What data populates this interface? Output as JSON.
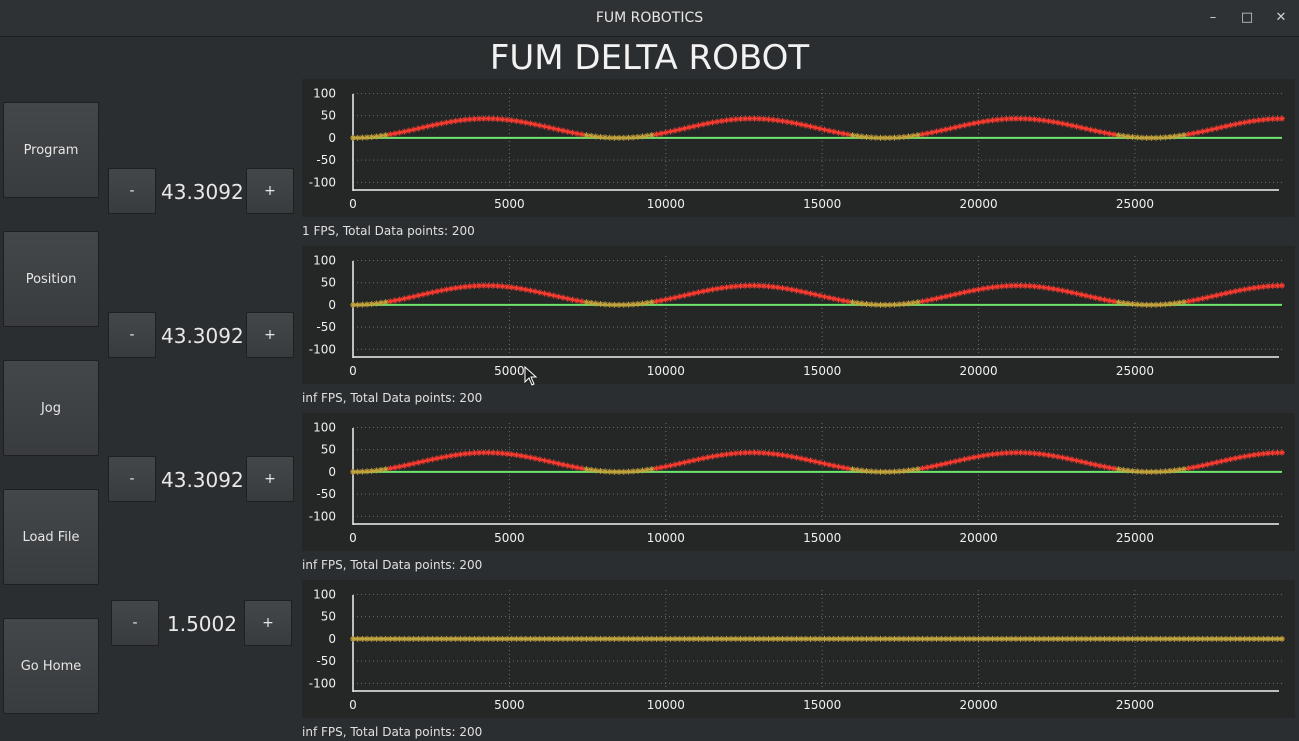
{
  "window": {
    "title": "FUM ROBOTICS",
    "controls": [
      "minimize",
      "maximize",
      "close"
    ]
  },
  "header": {
    "title": "FUM DELTA ROBOT"
  },
  "sidebar": {
    "buttons": [
      {
        "label": "Program"
      },
      {
        "label": "Position"
      },
      {
        "label": "Jog"
      },
      {
        "label": "Load File"
      },
      {
        "label": "Go Home"
      }
    ]
  },
  "steppers": [
    {
      "minus": "-",
      "plus": "+",
      "value": "43.3092"
    },
    {
      "minus": "-",
      "plus": "+",
      "value": "43.3092"
    },
    {
      "minus": "-",
      "plus": "+",
      "value": "43.3092"
    },
    {
      "minus": "-",
      "plus": "+",
      "value": "1.5002"
    }
  ],
  "colors": {
    "signal": "#ff3b30",
    "baseline": "#6ee66e",
    "background": "#2b2e30",
    "plot_bg": "#242726"
  },
  "plots": [
    {
      "status": "1 FPS, Total Data points: 200"
    },
    {
      "status": "inf FPS, Total Data points: 200"
    },
    {
      "status": "inf FPS, Total Data points: 200"
    },
    {
      "status": "inf FPS, Total Data points: 200"
    }
  ],
  "chart_data": [
    {
      "type": "line",
      "x_ticks": [
        "0",
        "5000",
        "10000",
        "15000",
        "20000",
        "25000"
      ],
      "y_ticks": [
        "100",
        "50",
        "0",
        "-50",
        "-100"
      ],
      "xlim": [
        0,
        29700
      ],
      "ylim": [
        -115,
        110
      ],
      "grid": true,
      "points": 200,
      "series": [
        {
          "amplitude": 43.3092,
          "period": 8500
        },
        {
          "constant": 0
        }
      ]
    },
    {
      "type": "line",
      "x_ticks": [
        "0",
        "5000",
        "10000",
        "15000",
        "20000",
        "25000"
      ],
      "y_ticks": [
        "100",
        "50",
        "0",
        "-50",
        "-100"
      ],
      "xlim": [
        0,
        29700
      ],
      "ylim": [
        -115,
        110
      ],
      "grid": true,
      "points": 200,
      "series": [
        {
          "amplitude": 43.3092,
          "period": 8500
        },
        {
          "constant": 0
        }
      ]
    },
    {
      "type": "line",
      "x_ticks": [
        "0",
        "5000",
        "10000",
        "15000",
        "20000",
        "25000"
      ],
      "y_ticks": [
        "100",
        "50",
        "0",
        "-50",
        "-100"
      ],
      "xlim": [
        0,
        29700
      ],
      "ylim": [
        -115,
        110
      ],
      "grid": true,
      "points": 200,
      "series": [
        {
          "amplitude": 43.3092,
          "period": 8500
        },
        {
          "constant": 0
        }
      ]
    },
    {
      "type": "line",
      "x_ticks": [
        "0",
        "5000",
        "10000",
        "15000",
        "20000",
        "25000"
      ],
      "y_ticks": [
        "100",
        "50",
        "0",
        "-50",
        "-100"
      ],
      "xlim": [
        0,
        29700
      ],
      "ylim": [
        -115,
        110
      ],
      "grid": true,
      "points": 200,
      "series": [
        {
          "amplitude": 0,
          "period": 8500
        },
        {
          "constant": 0
        }
      ]
    }
  ]
}
